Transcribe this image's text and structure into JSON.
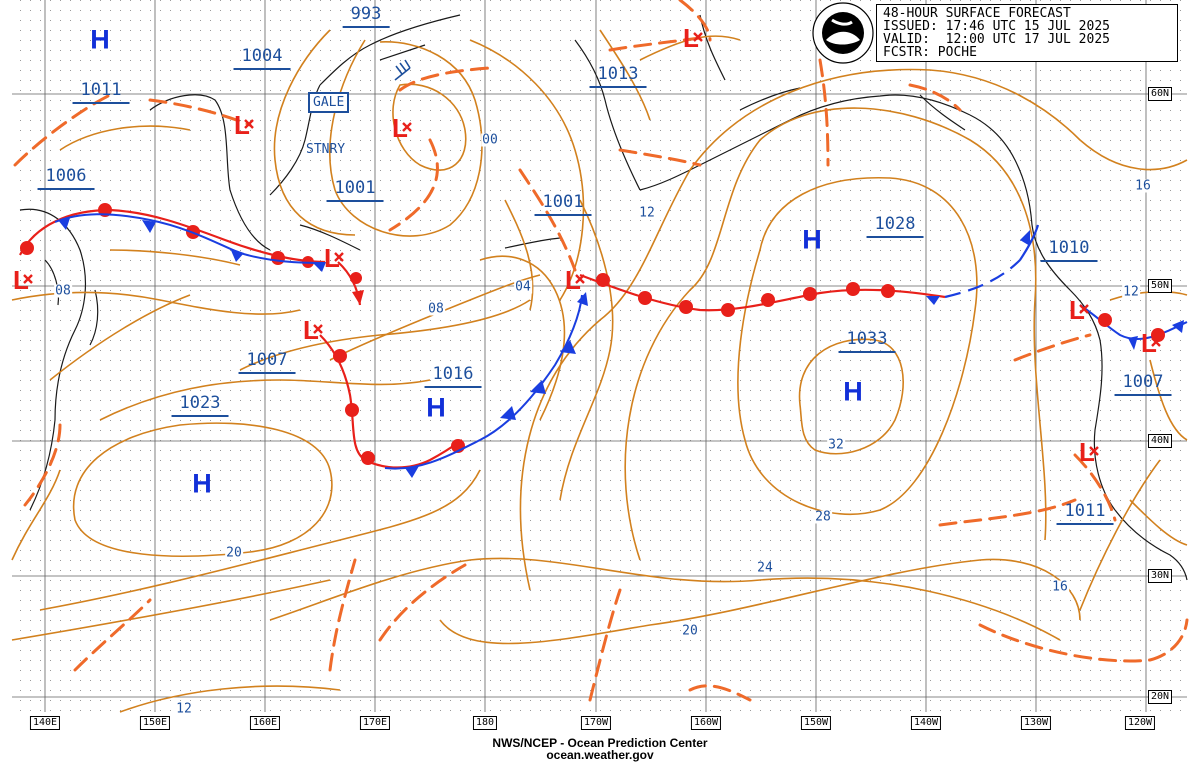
{
  "header": {
    "line1": "48-HOUR SURFACE FORECAST",
    "line2": "ISSUED: 17:46 UTC 15 JUL 2025",
    "line3": "VALID:  12:00 UTC 17 JUL 2025",
    "line4": "FCSTR: POCHE"
  },
  "footer": {
    "line1": "NWS/NCEP - Ocean Prediction Center",
    "line2": "ocean.weather.gov"
  },
  "longitude_labels": [
    "140E",
    "150E",
    "160E",
    "170E",
    "180",
    "170W",
    "160W",
    "150W",
    "140W",
    "130W",
    "120W"
  ],
  "latitude_labels": [
    "60N",
    "50N",
    "40N",
    "30N",
    "20N"
  ],
  "high_centers": [
    {
      "symbol": "H",
      "pressure": "1023"
    },
    {
      "symbol": "H",
      "pressure": "1016"
    },
    {
      "symbol": "H",
      "pressure": "1028"
    },
    {
      "symbol": "H",
      "pressure": "1033"
    },
    {
      "symbol": "H",
      "pressure": ""
    }
  ],
  "low_centers": [
    {
      "symbol": "L",
      "pressure": "993"
    },
    {
      "symbol": "L",
      "pressure": "1004"
    },
    {
      "symbol": "L",
      "pressure": "1011"
    },
    {
      "symbol": "L",
      "pressure": "1006"
    },
    {
      "symbol": "L",
      "pressure": "1001"
    },
    {
      "symbol": "L",
      "pressure": "1007"
    },
    {
      "symbol": "L",
      "pressure": "1001"
    },
    {
      "symbol": "L",
      "pressure": "1013"
    },
    {
      "symbol": "L",
      "pressure": "1010"
    },
    {
      "symbol": "L",
      "pressure": "1007"
    },
    {
      "symbol": "L",
      "pressure": "1011"
    }
  ],
  "isobar_labels": [
    "00",
    "04",
    "08",
    "08",
    "12",
    "12",
    "12",
    "16",
    "16",
    "20",
    "20",
    "24",
    "28",
    "32"
  ],
  "warning_tags": {
    "gale": "GALE",
    "stationary": "STNRY"
  },
  "colors": {
    "isobar": "#d2811e",
    "trough": "#ef6a2a",
    "warm_front": "#e8201a",
    "cold_front": "#1a3ee0",
    "pressure_label": "#1d4f9c",
    "high_symbol": "#1230d8",
    "low_symbol": "#e8201a",
    "coastline": "#1a1a1a",
    "grid": "#606060"
  }
}
